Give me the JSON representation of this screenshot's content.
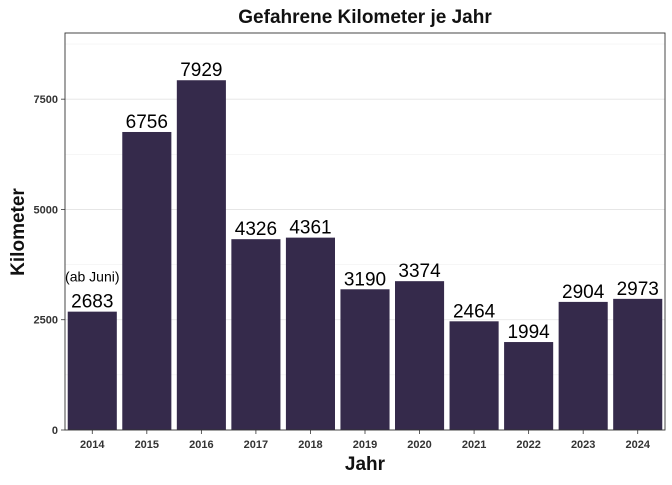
{
  "chart_data": {
    "type": "bar",
    "title": "Gefahrene Kilometer je Jahr",
    "xlabel": "Jahr",
    "ylabel": "Kilometer",
    "categories": [
      "2014",
      "2015",
      "2016",
      "2017",
      "2018",
      "2019",
      "2020",
      "2021",
      "2022",
      "2023",
      "2024"
    ],
    "values": [
      2683,
      6756,
      7929,
      4326,
      4361,
      3190,
      3374,
      2464,
      1994,
      2904,
      2973
    ],
    "data_labels": [
      "2683",
      "6756",
      "7929",
      "4326",
      "4361",
      "3190",
      "3374",
      "2464",
      "1994",
      "2904",
      "2973"
    ],
    "annotations": [
      {
        "category": "2014",
        "text": "(ab Juni)"
      }
    ],
    "yticks": [
      0,
      2500,
      5000,
      7500
    ],
    "ytick_labels": [
      "0",
      "2500",
      "5000",
      "7500"
    ],
    "ylim": [
      0,
      9000
    ],
    "grid": true,
    "bar_color": "#352a4b"
  }
}
